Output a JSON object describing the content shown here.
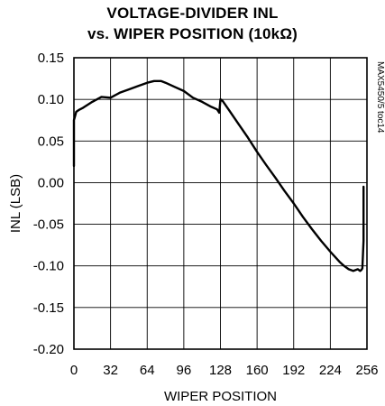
{
  "chart_data": {
    "type": "line",
    "title_line1": "VOLTAGE-DIVIDER INL",
    "title_line2": "vs. WIPER POSITION (10kΩ)",
    "xlabel": "WIPER POSITION",
    "ylabel": "INL (LSB)",
    "watermark": "MAX5450/5 toc14",
    "xlim": [
      0,
      256
    ],
    "ylim": [
      -0.2,
      0.15
    ],
    "xticks": [
      "0",
      "32",
      "64",
      "96",
      "128",
      "160",
      "192",
      "224",
      "256"
    ],
    "yticks": [
      "0.15",
      "0.10",
      "0.05",
      "0.00",
      "-0.05",
      "-0.10",
      "-0.15",
      "-0.20"
    ],
    "grid": true,
    "series": [
      {
        "x": [
          0,
          0,
          1,
          2,
          4,
          8,
          16,
          24,
          32,
          40,
          48,
          56,
          64,
          70,
          76,
          80,
          88,
          96,
          104,
          112,
          120,
          125,
          126,
          127,
          128,
          130,
          136,
          144,
          152,
          160,
          168,
          176,
          184,
          192,
          200,
          208,
          216,
          224,
          232,
          236,
          240,
          244,
          248,
          250,
          251,
          252,
          253,
          253
        ],
        "y": [
          0.02,
          0.075,
          0.08,
          0.085,
          0.087,
          0.09,
          0.097,
          0.103,
          0.102,
          0.108,
          0.112,
          0.116,
          0.12,
          0.122,
          0.122,
          0.12,
          0.115,
          0.11,
          0.102,
          0.097,
          0.091,
          0.088,
          0.086,
          0.084,
          0.1,
          0.098,
          0.086,
          0.07,
          0.054,
          0.037,
          0.021,
          0.006,
          -0.01,
          -0.025,
          -0.041,
          -0.056,
          -0.07,
          -0.083,
          -0.095,
          -0.1,
          -0.104,
          -0.106,
          -0.104,
          -0.106,
          -0.105,
          -0.103,
          -0.07,
          -0.005
        ]
      }
    ]
  }
}
